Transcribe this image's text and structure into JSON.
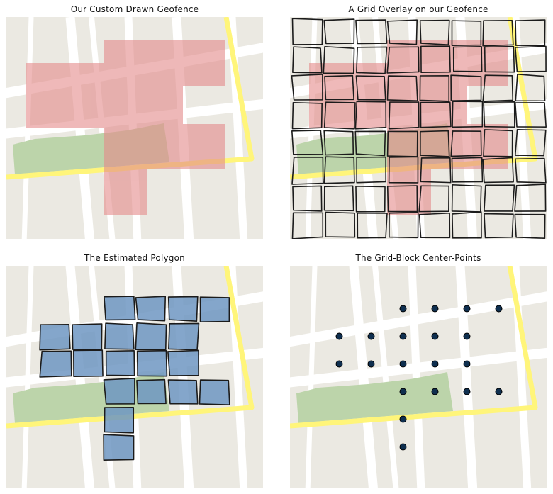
{
  "panels": [
    {
      "title": "Our Custom Drawn Geofence"
    },
    {
      "title": "A Grid Overlay on our Geofence"
    },
    {
      "title": "The Estimated Polygon"
    },
    {
      "title": "The Grid-Block Center-Points"
    }
  ],
  "colors": {
    "map_bg": "#ebe9e2",
    "road": "#ffffff",
    "highway": "#fff57a",
    "park": "#bcd4aa",
    "geofence": "#e48a8a",
    "estimated_block": "#6f97c2",
    "center_point": "#0f2f4f",
    "grid_line": "#1b1b1b"
  },
  "grid": {
    "columns": 8,
    "rows": 8,
    "selected_cells": [
      [
        3,
        1
      ],
      [
        4,
        1
      ],
      [
        5,
        1
      ],
      [
        6,
        1
      ],
      [
        1,
        2
      ],
      [
        2,
        2
      ],
      [
        3,
        2
      ],
      [
        4,
        2
      ],
      [
        5,
        2
      ],
      [
        1,
        3
      ],
      [
        2,
        3
      ],
      [
        3,
        3
      ],
      [
        4,
        3
      ],
      [
        5,
        3
      ],
      [
        3,
        4
      ],
      [
        4,
        4
      ],
      [
        5,
        4
      ],
      [
        6,
        4
      ],
      [
        3,
        5
      ],
      [
        3,
        6
      ]
    ]
  }
}
